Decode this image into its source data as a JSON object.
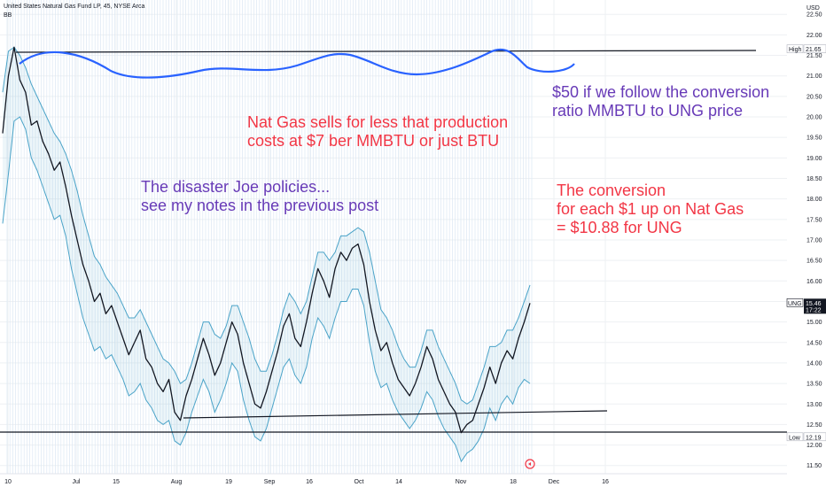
{
  "header": {
    "symbol_line": "United States Natural Gas Fund LP, 45, NYSE Arca",
    "indicator": "BB"
  },
  "annotations": [
    {
      "id": "production",
      "color": "#f23645",
      "lines": [
        "Nat Gas sells for less that production",
        "costs at $7 ber MMBTU or just BTU"
      ]
    },
    {
      "id": "conversion_target",
      "color": "#673ab7",
      "lines": [
        "$50 if we follow the conversion",
        "ratio MMBTU to UNG price"
      ]
    },
    {
      "id": "policies",
      "color": "#673ab7",
      "lines": [
        "The disaster Joe policies...",
        "see my notes in the previous post"
      ]
    },
    {
      "id": "conversion_rule",
      "color": "#f23645",
      "lines": [
        "The conversion",
        "for each $1 up on Nat Gas",
        "= $10.88 for UNG"
      ]
    }
  ],
  "chart_data": {
    "type": "line",
    "currency_label": "USD",
    "y_ticks": [
      11.5,
      12.0,
      12.5,
      13.0,
      13.5,
      14.0,
      14.5,
      15.0,
      15.5,
      16.0,
      16.5,
      17.0,
      17.5,
      18.0,
      18.5,
      19.0,
      19.5,
      20.0,
      20.5,
      21.0,
      21.5,
      22.0,
      22.5
    ],
    "ylim": [
      11.3,
      22.85
    ],
    "x_ticks": [
      "10",
      "Jul",
      "15",
      "Aug",
      "19",
      "Sep",
      "16",
      "Oct",
      "14",
      "Nov",
      "18",
      "Dec",
      "16"
    ],
    "grid": true,
    "price_labels": [
      {
        "name": "High",
        "value": 21.65,
        "text": "21.65"
      },
      {
        "name": "UNG",
        "value": 15.46,
        "text": "15.46",
        "countdown": "17:22"
      },
      {
        "name": "Low",
        "value": 12.19,
        "text": "12.19"
      }
    ],
    "series": [
      {
        "name": "UNG",
        "color": "#131722",
        "values": [
          19.6,
          21.0,
          21.7,
          20.9,
          20.6,
          19.8,
          19.9,
          19.4,
          19.1,
          18.7,
          18.9,
          18.3,
          17.6,
          17.0,
          16.4,
          16.0,
          15.5,
          15.7,
          15.2,
          15.4,
          15.0,
          14.6,
          14.2,
          14.5,
          14.8,
          14.1,
          13.9,
          13.5,
          13.3,
          13.6,
          12.8,
          12.6,
          13.2,
          13.6,
          14.1,
          14.6,
          14.2,
          13.7,
          14.0,
          14.5,
          15.0,
          14.7,
          14.0,
          13.5,
          13.0,
          12.9,
          13.3,
          13.8,
          14.3,
          14.9,
          15.2,
          14.6,
          14.4,
          15.0,
          15.7,
          16.3,
          16.0,
          15.6,
          16.3,
          16.7,
          16.5,
          16.8,
          16.9,
          16.4,
          15.5,
          14.8,
          14.3,
          14.5,
          14.0,
          13.6,
          13.4,
          13.2,
          13.5,
          13.9,
          14.4,
          14.1,
          13.6,
          13.3,
          13.0,
          12.8,
          12.3,
          12.5,
          12.6,
          13.0,
          13.4,
          13.9,
          13.5,
          14.0,
          14.3,
          14.1,
          14.6,
          15.0,
          15.46
        ]
      },
      {
        "name": "BB upper",
        "color": "#4aa3c8",
        "values": [
          20.6,
          21.6,
          21.7,
          21.5,
          21.2,
          20.8,
          20.5,
          20.2,
          19.9,
          19.6,
          19.4,
          19.1,
          18.7,
          18.2,
          17.6,
          17.1,
          16.6,
          16.4,
          16.1,
          15.9,
          15.7,
          15.4,
          15.1,
          15.1,
          15.3,
          15.0,
          14.7,
          14.4,
          14.1,
          14.0,
          13.8,
          13.5,
          13.6,
          14.0,
          14.5,
          15.0,
          15.0,
          14.7,
          14.6,
          14.9,
          15.4,
          15.4,
          15.0,
          14.6,
          14.1,
          13.8,
          13.8,
          14.2,
          14.7,
          15.3,
          15.7,
          15.5,
          15.2,
          15.5,
          16.1,
          16.7,
          16.7,
          16.5,
          16.7,
          17.1,
          17.1,
          17.2,
          17.3,
          17.2,
          16.7,
          16.0,
          15.3,
          15.1,
          14.8,
          14.4,
          14.1,
          13.9,
          13.9,
          14.3,
          14.8,
          14.8,
          14.4,
          14.1,
          13.8,
          13.5,
          13.1,
          13.0,
          13.1,
          13.5,
          13.9,
          14.4,
          14.4,
          14.5,
          14.8,
          14.8,
          15.1,
          15.5,
          15.9
        ]
      },
      {
        "name": "BB lower",
        "color": "#4aa3c8",
        "values": [
          17.4,
          18.6,
          19.9,
          20.0,
          19.7,
          19.0,
          18.7,
          18.3,
          17.9,
          17.5,
          17.6,
          17.1,
          16.3,
          15.7,
          15.1,
          14.7,
          14.3,
          14.4,
          14.1,
          14.2,
          13.9,
          13.6,
          13.2,
          13.3,
          13.5,
          13.1,
          12.9,
          12.6,
          12.5,
          12.6,
          12.1,
          12.0,
          12.3,
          12.8,
          13.2,
          13.6,
          13.3,
          12.8,
          13.1,
          13.5,
          14.0,
          13.8,
          13.1,
          12.6,
          12.2,
          12.1,
          12.4,
          12.9,
          13.4,
          13.9,
          14.1,
          13.7,
          13.5,
          13.9,
          14.6,
          15.1,
          14.9,
          14.6,
          15.1,
          15.5,
          15.5,
          15.8,
          15.8,
          15.4,
          14.5,
          13.8,
          13.4,
          13.5,
          13.1,
          12.8,
          12.6,
          12.4,
          12.6,
          12.9,
          13.3,
          13.1,
          12.7,
          12.4,
          12.2,
          12.0,
          11.6,
          11.8,
          11.9,
          12.1,
          12.4,
          12.9,
          12.6,
          13.0,
          13.2,
          13.0,
          13.4,
          13.6,
          13.5
        ]
      }
    ]
  }
}
